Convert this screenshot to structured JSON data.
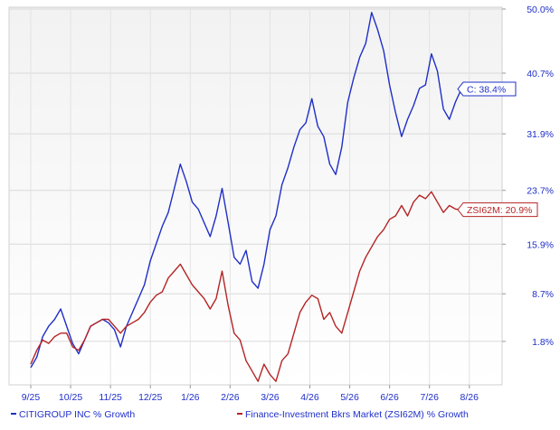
{
  "chart_data": {
    "type": "line",
    "title": "",
    "xlabel": "",
    "ylabel": "",
    "x_categories": [
      "9/25",
      "10/25",
      "11/25",
      "12/25",
      "1/26",
      "2/26",
      "3/26",
      "4/26",
      "5/26",
      "6/26",
      "7/26",
      "8/26"
    ],
    "y_ticks": [
      "50.0%",
      "40.7%",
      "31.9%",
      "23.7%",
      "15.9%",
      "8.7%",
      "1.8%"
    ],
    "y_tick_values": [
      50.0,
      40.7,
      31.9,
      23.7,
      15.9,
      8.7,
      1.8
    ],
    "ylim": [
      -4.5,
      50.0
    ],
    "grid": true,
    "legend_position": "bottom",
    "series": [
      {
        "name": "CITIGROUP INC % Growth",
        "color": "#1f2fc8",
        "end_label": "C: 38.4%",
        "x": [
          0,
          0.15,
          0.3,
          0.45,
          0.6,
          0.75,
          0.9,
          1.05,
          1.2,
          1.35,
          1.5,
          1.65,
          1.8,
          1.95,
          2.1,
          2.25,
          2.4,
          2.55,
          2.7,
          2.85,
          3.0,
          3.15,
          3.3,
          3.45,
          3.6,
          3.75,
          3.9,
          4.05,
          4.2,
          4.35,
          4.5,
          4.65,
          4.8,
          4.95,
          5.1,
          5.25,
          5.4,
          5.55,
          5.7,
          5.85,
          6.0,
          6.15,
          6.3,
          6.45,
          6.6,
          6.75,
          6.9,
          7.05,
          7.2,
          7.35,
          7.5,
          7.65,
          7.8,
          7.95,
          8.1,
          8.25,
          8.4,
          8.55,
          8.7,
          8.85,
          9.0,
          9.15,
          9.3,
          9.45,
          9.6,
          9.75,
          9.9,
          10.05,
          10.2,
          10.35,
          10.5,
          10.65,
          10.8,
          10.95,
          11.1,
          11.25,
          11.4
        ],
        "y": [
          -2.0,
          -0.5,
          2.5,
          4.0,
          5.0,
          6.5,
          4.0,
          1.5,
          0.0,
          2.0,
          4.0,
          4.5,
          5.0,
          4.5,
          3.5,
          1.0,
          4.0,
          6.0,
          8.0,
          10.0,
          13.5,
          16.0,
          18.5,
          20.5,
          24.0,
          27.5,
          25.0,
          22.0,
          21.0,
          19.0,
          17.0,
          20.0,
          24.0,
          19.0,
          14.0,
          13.0,
          15.0,
          10.5,
          9.5,
          13.0,
          18.0,
          20.0,
          24.5,
          27.0,
          30.0,
          32.5,
          33.5,
          37.0,
          33.0,
          31.5,
          27.5,
          26.0,
          30.0,
          36.5,
          40.0,
          43.0,
          45.0,
          49.5,
          47.0,
          44.0,
          39.0,
          35.0,
          31.5,
          34.0,
          36.0,
          38.5,
          39.0,
          43.5,
          41.0,
          35.5,
          34.0,
          36.5,
          38.4,
          37.5,
          38.0,
          38.4,
          38.4
        ]
      },
      {
        "name": "Finance-Investment Bkrs Market (ZSI62M) % Growth",
        "color": "#b52424",
        "end_label": "ZSI62M: 20.9%",
        "x": [
          0,
          0.15,
          0.3,
          0.45,
          0.6,
          0.75,
          0.9,
          1.05,
          1.2,
          1.35,
          1.5,
          1.65,
          1.8,
          1.95,
          2.1,
          2.25,
          2.4,
          2.55,
          2.7,
          2.85,
          3.0,
          3.15,
          3.3,
          3.45,
          3.6,
          3.75,
          3.9,
          4.05,
          4.2,
          4.35,
          4.5,
          4.65,
          4.8,
          4.95,
          5.1,
          5.25,
          5.4,
          5.55,
          5.7,
          5.85,
          6.0,
          6.15,
          6.3,
          6.45,
          6.6,
          6.75,
          6.9,
          7.05,
          7.2,
          7.35,
          7.5,
          7.65,
          7.8,
          7.95,
          8.1,
          8.25,
          8.4,
          8.55,
          8.7,
          8.85,
          9.0,
          9.15,
          9.3,
          9.45,
          9.6,
          9.75,
          9.9,
          10.05,
          10.2,
          10.35,
          10.5,
          10.65,
          10.8,
          10.95,
          11.1,
          11.25,
          11.4
        ],
        "y": [
          -1.5,
          0.5,
          2.0,
          1.5,
          2.5,
          3.0,
          3.0,
          1.0,
          0.5,
          2.0,
          4.0,
          4.5,
          5.0,
          5.0,
          4.0,
          3.0,
          4.0,
          4.5,
          5.0,
          6.0,
          7.5,
          8.5,
          9.0,
          11.0,
          12.0,
          13.0,
          11.5,
          10.0,
          9.0,
          8.0,
          6.5,
          8.0,
          12.0,
          7.0,
          3.0,
          2.0,
          -1.0,
          -2.5,
          -4.0,
          -1.5,
          -3.0,
          -4.0,
          -1.0,
          0.0,
          3.0,
          6.0,
          7.5,
          8.5,
          8.0,
          5.0,
          6.0,
          4.0,
          3.0,
          6.0,
          9.0,
          12.0,
          14.0,
          15.5,
          17.0,
          18.0,
          19.5,
          20.0,
          21.5,
          20.0,
          22.0,
          23.0,
          22.5,
          23.5,
          22.0,
          20.5,
          21.5,
          21.0,
          20.9,
          21.0,
          20.9,
          20.9,
          20.9
        ]
      }
    ]
  },
  "legend": [
    {
      "label": "CITIGROUP INC % Growth",
      "color": "#1f2fc8"
    },
    {
      "label": "Finance-Investment Bkrs Market (ZSI62M) % Growth",
      "color": "#b52424"
    }
  ]
}
